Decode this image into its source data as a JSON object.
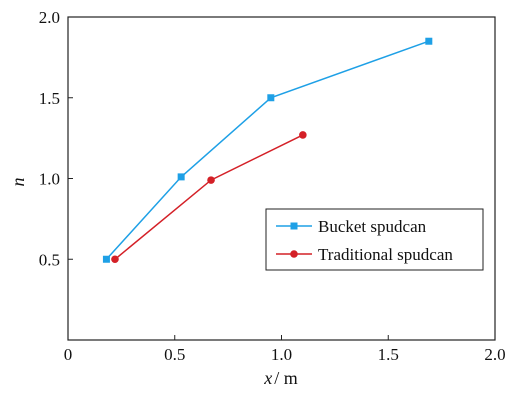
{
  "chart_data": {
    "type": "line",
    "title": "",
    "xlabel": "x",
    "xlabel_unit": "/ m",
    "ylabel": "n",
    "xlim": [
      0,
      2.0
    ],
    "ylim": [
      0,
      2.0
    ],
    "xticks": [
      0,
      0.5,
      1.0,
      1.5,
      2.0
    ],
    "xtick_labels": [
      "0",
      "0.5",
      "1.0",
      "1.5",
      "2.0"
    ],
    "yticks": [
      0.5,
      1.0,
      1.5,
      2.0
    ],
    "ytick_labels": [
      "0.5",
      "1.0",
      "1.5",
      "2.0"
    ],
    "grid": false,
    "legend_position": "center-right",
    "series": [
      {
        "name": "Bucket spudcan",
        "color": "#1ea0e6",
        "marker": "square",
        "x": [
          0.18,
          0.53,
          0.95,
          1.69
        ],
        "y": [
          0.5,
          1.01,
          1.5,
          1.85
        ]
      },
      {
        "name": "Traditional spudcan",
        "color": "#d42027",
        "marker": "circle",
        "x": [
          0.22,
          0.67,
          1.1
        ],
        "y": [
          0.5,
          0.99,
          1.27
        ]
      }
    ]
  }
}
